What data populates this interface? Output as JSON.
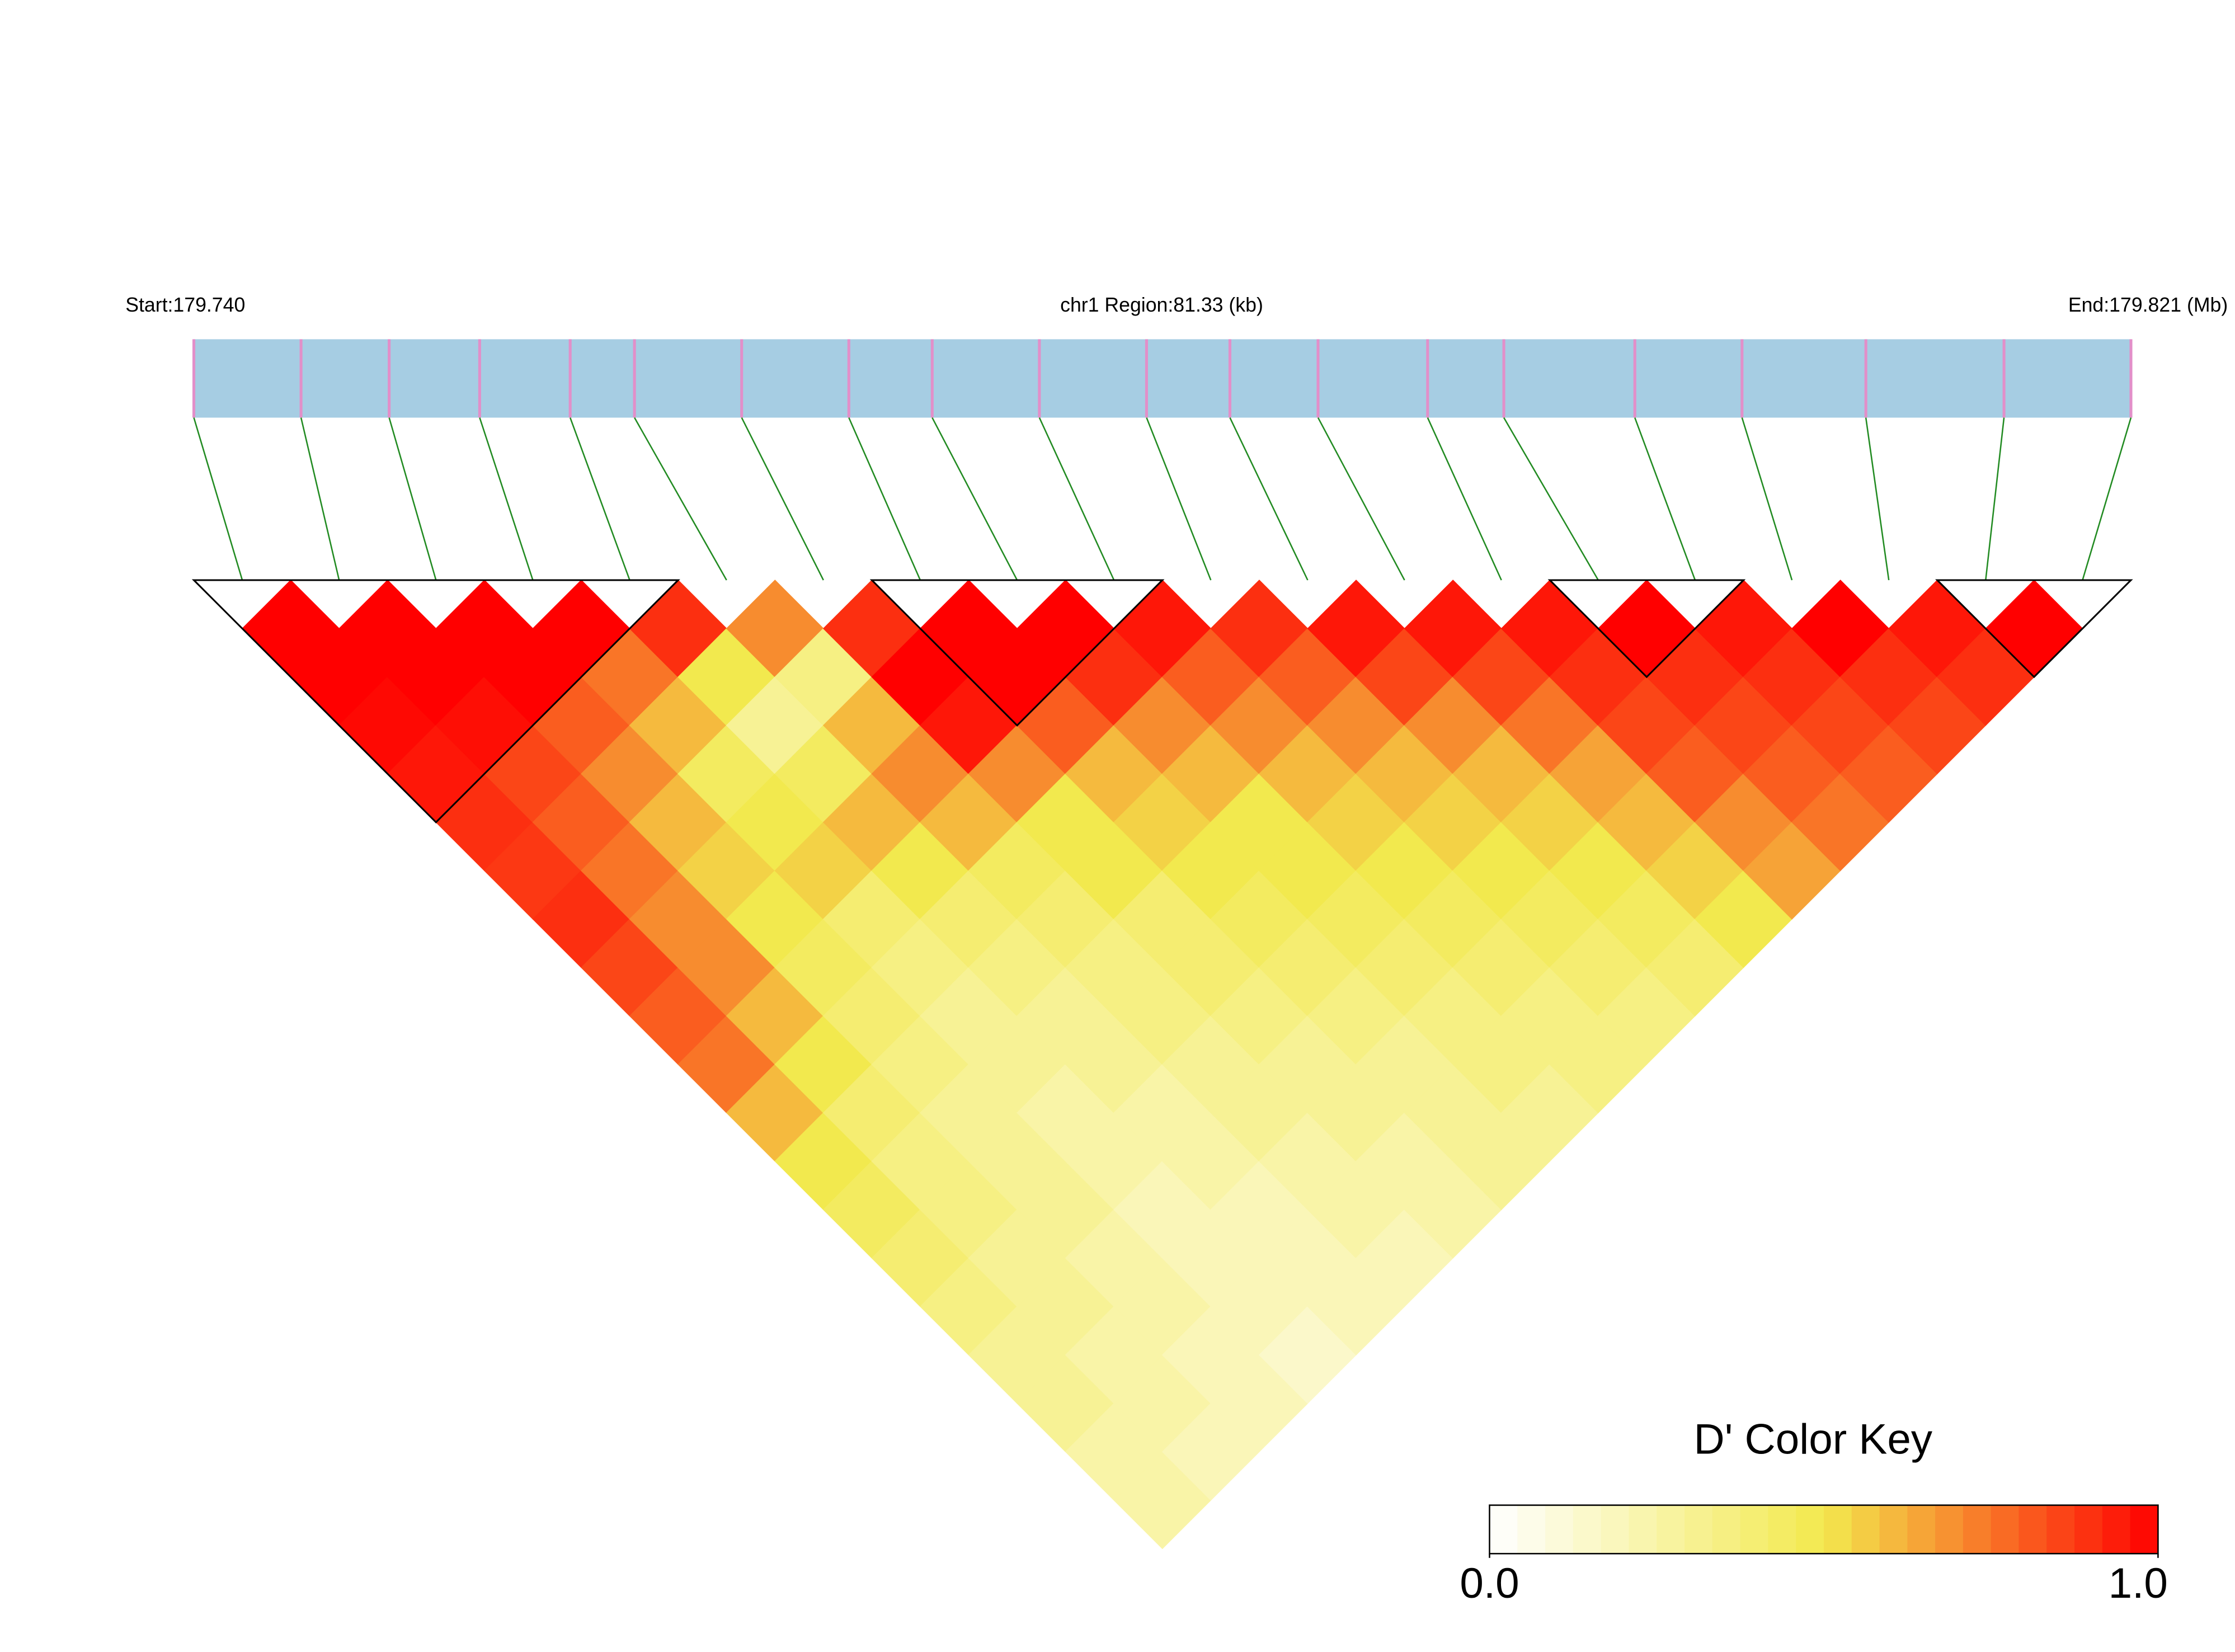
{
  "chart_data": {
    "type": "ld_heatmap",
    "start_label": "Start:179.740",
    "region_label": "chr1 Region:81.33 (kb)",
    "end_label": "End:179.821 (Mb)",
    "colorbar_title": "D' Color Key",
    "xlim": [
      0,
      81.33
    ],
    "snp_positions_kb": [
      0,
      4.5,
      8.2,
      12.0,
      15.8,
      18.5,
      23.0,
      27.5,
      31.0,
      35.5,
      40.0,
      43.5,
      47.2,
      51.8,
      55.0,
      60.5,
      65.0,
      70.2,
      76.0,
      81.33
    ],
    "d_prime": [
      [
        1.0
      ],
      [
        1.0,
        1.0
      ],
      [
        0.98,
        1.0,
        1.0
      ],
      [
        0.95,
        0.97,
        1.0,
        1.0
      ],
      [
        0.9,
        0.85,
        0.8,
        0.75,
        0.9
      ],
      [
        0.88,
        0.8,
        0.7,
        0.6,
        0.5,
        0.7
      ],
      [
        0.9,
        0.75,
        0.6,
        0.45,
        0.3,
        0.35,
        0.9
      ],
      [
        0.85,
        0.7,
        0.55,
        0.5,
        0.45,
        0.6,
        1.0,
        1.0
      ],
      [
        0.8,
        0.7,
        0.5,
        0.55,
        0.6,
        0.7,
        0.95,
        1.0,
        1.0
      ],
      [
        0.75,
        0.6,
        0.45,
        0.4,
        0.5,
        0.6,
        0.7,
        0.8,
        0.9,
        0.95
      ],
      [
        0.6,
        0.5,
        0.4,
        0.35,
        0.4,
        0.45,
        0.5,
        0.6,
        0.7,
        0.8,
        0.9
      ],
      [
        0.5,
        0.4,
        0.35,
        0.3,
        0.35,
        0.4,
        0.5,
        0.55,
        0.6,
        0.7,
        0.8,
        0.95
      ],
      [
        0.45,
        0.35,
        0.3,
        0.3,
        0.3,
        0.35,
        0.4,
        0.5,
        0.5,
        0.6,
        0.7,
        0.85,
        0.95
      ],
      [
        0.4,
        0.35,
        0.3,
        0.25,
        0.3,
        0.35,
        0.4,
        0.45,
        0.5,
        0.55,
        0.6,
        0.7,
        0.85,
        0.95
      ],
      [
        0.35,
        0.3,
        0.3,
        0.25,
        0.25,
        0.3,
        0.35,
        0.4,
        0.45,
        0.5,
        0.55,
        0.6,
        0.75,
        0.9,
        1.0
      ],
      [
        0.3,
        0.3,
        0.25,
        0.2,
        0.25,
        0.3,
        0.3,
        0.35,
        0.4,
        0.45,
        0.5,
        0.55,
        0.65,
        0.85,
        0.9,
        0.95
      ],
      [
        0.3,
        0.25,
        0.25,
        0.2,
        0.2,
        0.25,
        0.3,
        0.3,
        0.35,
        0.4,
        0.45,
        0.5,
        0.6,
        0.8,
        0.85,
        0.9,
        1.0
      ],
      [
        0.25,
        0.25,
        0.2,
        0.2,
        0.2,
        0.25,
        0.25,
        0.3,
        0.35,
        0.35,
        0.4,
        0.45,
        0.55,
        0.7,
        0.8,
        0.85,
        0.9,
        0.95
      ],
      [
        0.25,
        0.2,
        0.2,
        0.15,
        0.2,
        0.2,
        0.25,
        0.3,
        0.3,
        0.35,
        0.35,
        0.4,
        0.5,
        0.65,
        0.75,
        0.8,
        0.85,
        0.9,
        1.0
      ]
    ],
    "blocks": [
      [
        0,
        4
      ],
      [
        7,
        9
      ],
      [
        14,
        15
      ],
      [
        18,
        19
      ]
    ],
    "clim": [
      0,
      1
    ],
    "colorbar_ticks": [
      {
        "value": 0,
        "label": "0.0"
      },
      {
        "value": 1,
        "label": "1.0"
      }
    ],
    "colors": [
      "#ffffff",
      "#f2e94e",
      "#ff0000"
    ],
    "bar_color": "#a6cde3",
    "snp_color": "#e28fc9",
    "link_color": "#228b22"
  }
}
